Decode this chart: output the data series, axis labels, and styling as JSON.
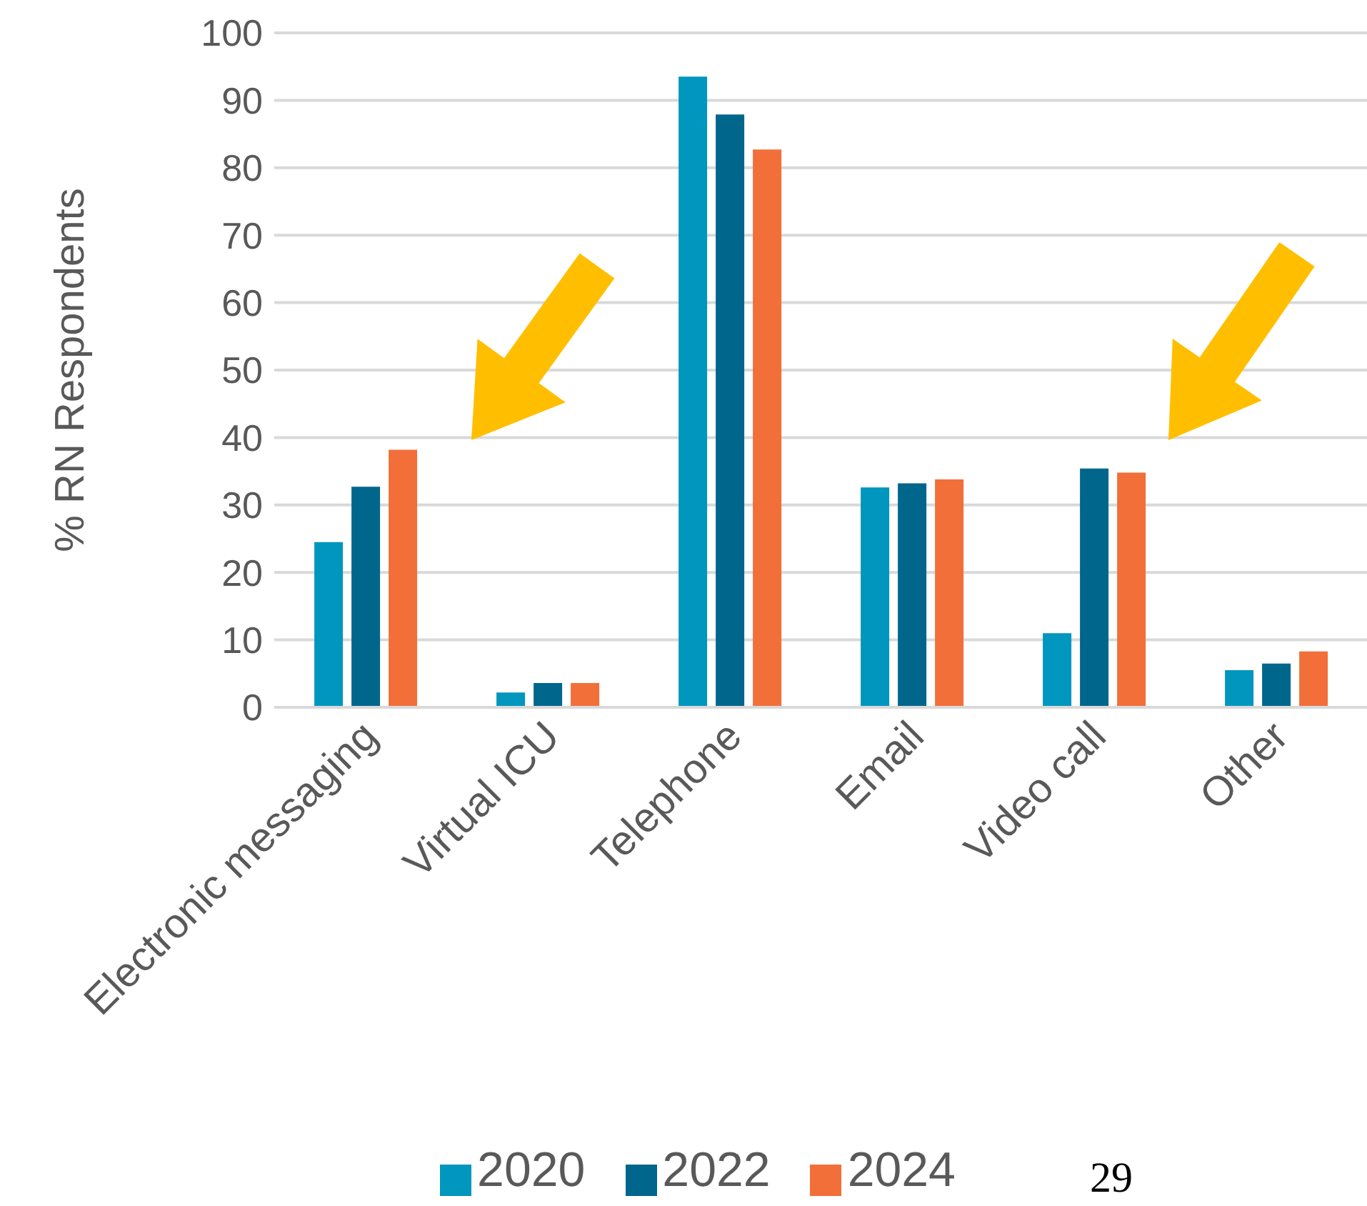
{
  "chart_data": {
    "type": "bar",
    "ylabel": "% RN Respondents",
    "categories": [
      "Electronic messaging",
      "Virtual ICU",
      "Telephone",
      "Email",
      "Video call",
      "Other"
    ],
    "series": [
      {
        "name": "2020",
        "color": "#0096be",
        "values": [
          24.5,
          2.2,
          93.5,
          32.6,
          11.0,
          5.5
        ]
      },
      {
        "name": "2022",
        "color": "#00668c",
        "values": [
          32.7,
          3.6,
          87.9,
          33.2,
          35.4,
          6.5
        ]
      },
      {
        "name": "2024",
        "color": "#f26f3a",
        "values": [
          38.2,
          3.6,
          82.7,
          33.8,
          34.8,
          8.3
        ]
      }
    ],
    "ylim": [
      0,
      100
    ],
    "yticks": [
      0,
      10,
      20,
      30,
      40,
      50,
      60,
      70,
      80,
      90,
      100
    ],
    "grid": "y",
    "legend": "bottom",
    "annotations": [
      "29"
    ]
  }
}
